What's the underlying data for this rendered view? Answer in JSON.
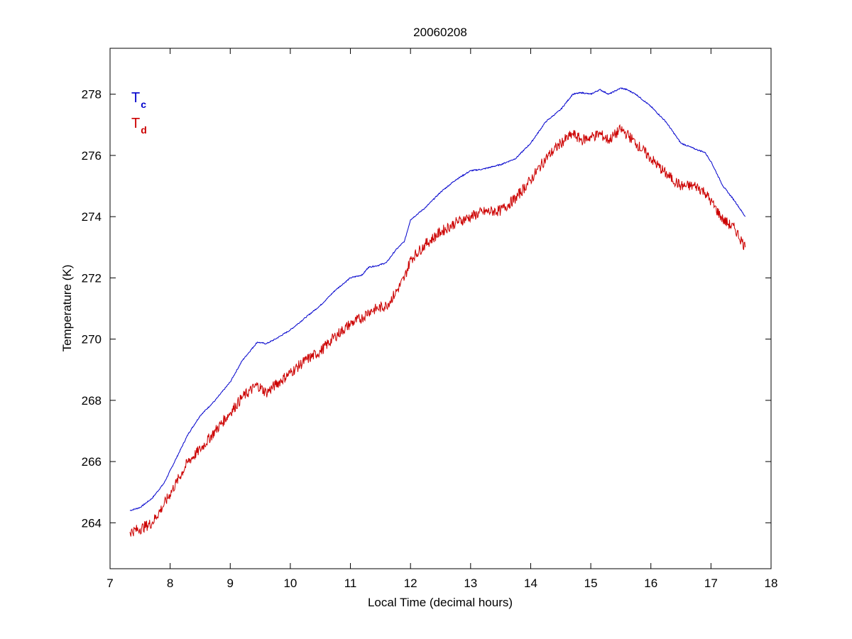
{
  "chart_data": {
    "type": "line",
    "title": "20060208",
    "xlabel": "Local Time (decimal hours)",
    "ylabel": "Temperature (K)",
    "xlim": [
      7,
      18
    ],
    "ylim": [
      262.5,
      279.5
    ],
    "xticks": [
      "7",
      "8",
      "9",
      "10",
      "11",
      "12",
      "13",
      "14",
      "15",
      "16",
      "17",
      "18"
    ],
    "yticks": [
      "264",
      "266",
      "268",
      "270",
      "272",
      "274",
      "276",
      "278"
    ],
    "grid": false,
    "legend_placement": "top-left",
    "series": [
      {
        "name_main": "T",
        "name_sub": "c",
        "color": "#0000cc",
        "noise": 0.02,
        "x": [
          7.33,
          7.5,
          7.7,
          7.9,
          8.1,
          8.3,
          8.5,
          8.75,
          9.0,
          9.2,
          9.45,
          9.6,
          9.75,
          10.0,
          10.25,
          10.5,
          10.75,
          11.0,
          11.2,
          11.3,
          11.45,
          11.6,
          11.75,
          11.9,
          12.0,
          12.25,
          12.5,
          12.75,
          13.0,
          13.2,
          13.5,
          13.75,
          14.0,
          14.25,
          14.5,
          14.7,
          14.85,
          15.0,
          15.15,
          15.3,
          15.5,
          15.6,
          15.75,
          16.0,
          16.25,
          16.5,
          16.75,
          16.9,
          17.0,
          17.2,
          17.4,
          17.57
        ],
        "y": [
          264.4,
          264.5,
          264.8,
          265.3,
          266.1,
          266.9,
          267.5,
          268.0,
          268.6,
          269.3,
          269.9,
          269.85,
          270.0,
          270.3,
          270.7,
          271.1,
          271.6,
          272.0,
          272.1,
          272.35,
          272.4,
          272.5,
          272.9,
          273.2,
          273.9,
          274.3,
          274.8,
          275.2,
          275.5,
          275.55,
          275.7,
          275.9,
          276.4,
          277.1,
          277.5,
          278.0,
          278.05,
          278.0,
          278.15,
          278.0,
          278.2,
          278.15,
          278.0,
          277.6,
          277.1,
          276.4,
          276.2,
          276.1,
          275.8,
          275.0,
          274.5,
          274.0
        ]
      },
      {
        "name_main": "T",
        "name_sub": "d",
        "color": "#cc0000",
        "noise": 0.18,
        "x": [
          7.33,
          7.5,
          7.7,
          7.9,
          8.1,
          8.3,
          8.5,
          8.75,
          9.0,
          9.2,
          9.45,
          9.6,
          9.75,
          10.0,
          10.25,
          10.5,
          10.75,
          11.0,
          11.2,
          11.3,
          11.45,
          11.6,
          11.75,
          11.9,
          12.0,
          12.25,
          12.5,
          12.75,
          13.0,
          13.2,
          13.5,
          13.75,
          14.0,
          14.25,
          14.5,
          14.7,
          14.85,
          15.0,
          15.15,
          15.3,
          15.5,
          15.6,
          15.75,
          16.0,
          16.25,
          16.5,
          16.75,
          16.9,
          17.0,
          17.2,
          17.4,
          17.57
        ],
        "y": [
          263.7,
          263.8,
          264.0,
          264.6,
          265.3,
          266.0,
          266.4,
          267.0,
          267.6,
          268.1,
          268.5,
          268.25,
          268.5,
          268.9,
          269.3,
          269.6,
          270.1,
          270.5,
          270.7,
          270.9,
          271.0,
          271.1,
          271.5,
          272.0,
          272.6,
          273.1,
          273.5,
          273.8,
          274.0,
          274.15,
          274.2,
          274.6,
          275.2,
          275.9,
          276.4,
          276.7,
          276.5,
          276.6,
          276.7,
          276.5,
          276.85,
          276.7,
          276.4,
          275.9,
          275.4,
          275.0,
          275.0,
          274.8,
          274.5,
          273.9,
          273.6,
          273.0
        ]
      }
    ]
  }
}
